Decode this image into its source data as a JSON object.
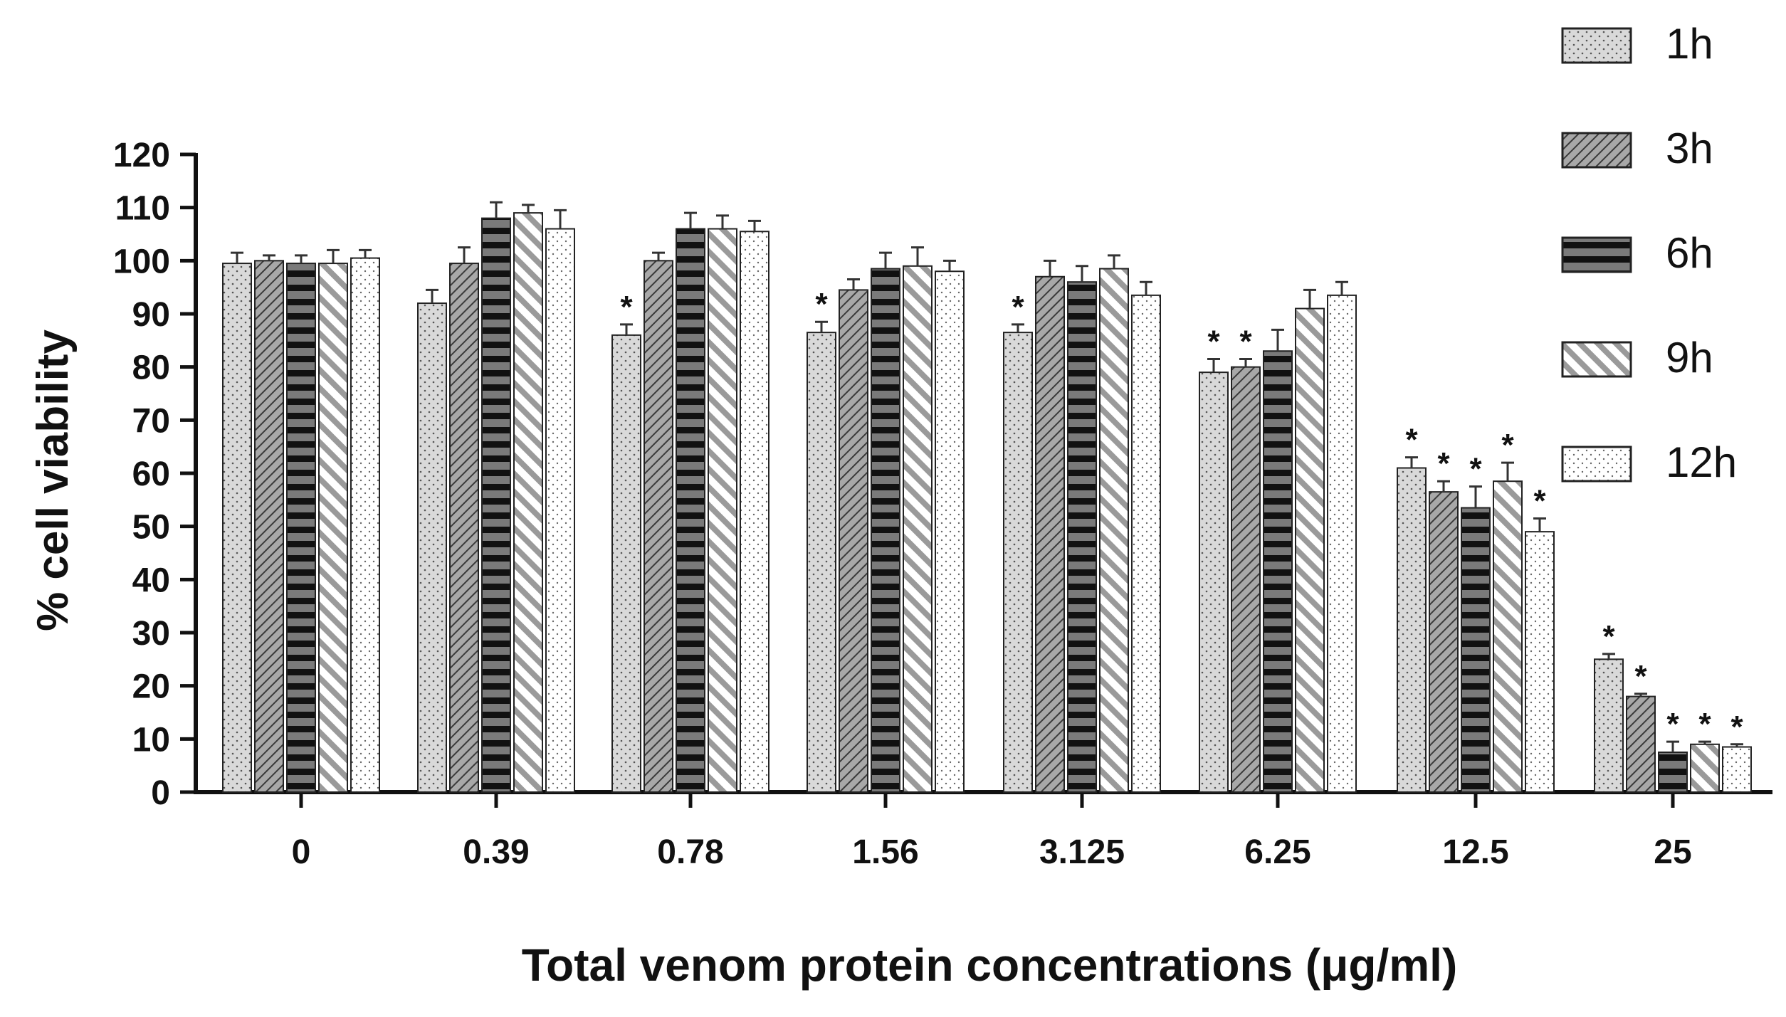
{
  "chart_data": {
    "type": "bar",
    "title": "",
    "xlabel": "Total venom protein concentrations (μg/ml)",
    "ylabel": "% cell viability",
    "ylim": [
      0,
      120
    ],
    "yticks": [
      0,
      10,
      20,
      30,
      40,
      50,
      60,
      70,
      80,
      90,
      100,
      110,
      120
    ],
    "categories": [
      "0",
      "0.39",
      "0.78",
      "1.56",
      "3.125",
      "6.25",
      "12.5",
      "25"
    ],
    "series": [
      {
        "name": "1h",
        "values": [
          99.5,
          92.0,
          86.0,
          86.5,
          86.5,
          79.0,
          61.0,
          25.0
        ],
        "errors": [
          2.0,
          2.5,
          2.0,
          2.0,
          1.5,
          2.5,
          2.0,
          1.0
        ],
        "significant": [
          false,
          false,
          true,
          true,
          true,
          true,
          true,
          true
        ]
      },
      {
        "name": "3h",
        "values": [
          100.0,
          99.5,
          100.0,
          94.5,
          97.0,
          80.0,
          56.5,
          18.0
        ],
        "errors": [
          1.0,
          3.0,
          1.5,
          2.0,
          3.0,
          1.5,
          2.0,
          0.5
        ],
        "significant": [
          false,
          false,
          false,
          false,
          false,
          true,
          true,
          true
        ]
      },
      {
        "name": "6h",
        "values": [
          99.5,
          108.0,
          106.0,
          98.5,
          96.0,
          83.0,
          53.5,
          7.5
        ],
        "errors": [
          1.5,
          3.0,
          3.0,
          3.0,
          3.0,
          4.0,
          4.0,
          2.0
        ],
        "significant": [
          false,
          false,
          false,
          false,
          false,
          false,
          true,
          true
        ]
      },
      {
        "name": "9h",
        "values": [
          99.5,
          109.0,
          106.0,
          99.0,
          98.5,
          91.0,
          58.5,
          9.0
        ],
        "errors": [
          2.5,
          1.5,
          2.5,
          3.5,
          2.5,
          3.5,
          3.5,
          0.5
        ],
        "significant": [
          false,
          false,
          false,
          false,
          false,
          false,
          true,
          true
        ]
      },
      {
        "name": "12h",
        "values": [
          100.5,
          106.0,
          105.5,
          98.0,
          93.5,
          93.5,
          49.0,
          8.5
        ],
        "errors": [
          1.5,
          3.5,
          2.0,
          2.0,
          2.5,
          2.5,
          2.5,
          0.5
        ],
        "significant": [
          false,
          false,
          false,
          false,
          false,
          false,
          true,
          true
        ]
      }
    ],
    "significance_marker": "*",
    "legend_position": "top-right",
    "grid": false
  },
  "colors": {
    "axis": "#111111",
    "fill_1h": "#d8d8d8",
    "fill_3h": "#a9a9a9",
    "fill_6h": "#777777",
    "fill_9h": "#bcbcbc",
    "fill_12h": "#ffffff",
    "edge": "#222222"
  }
}
